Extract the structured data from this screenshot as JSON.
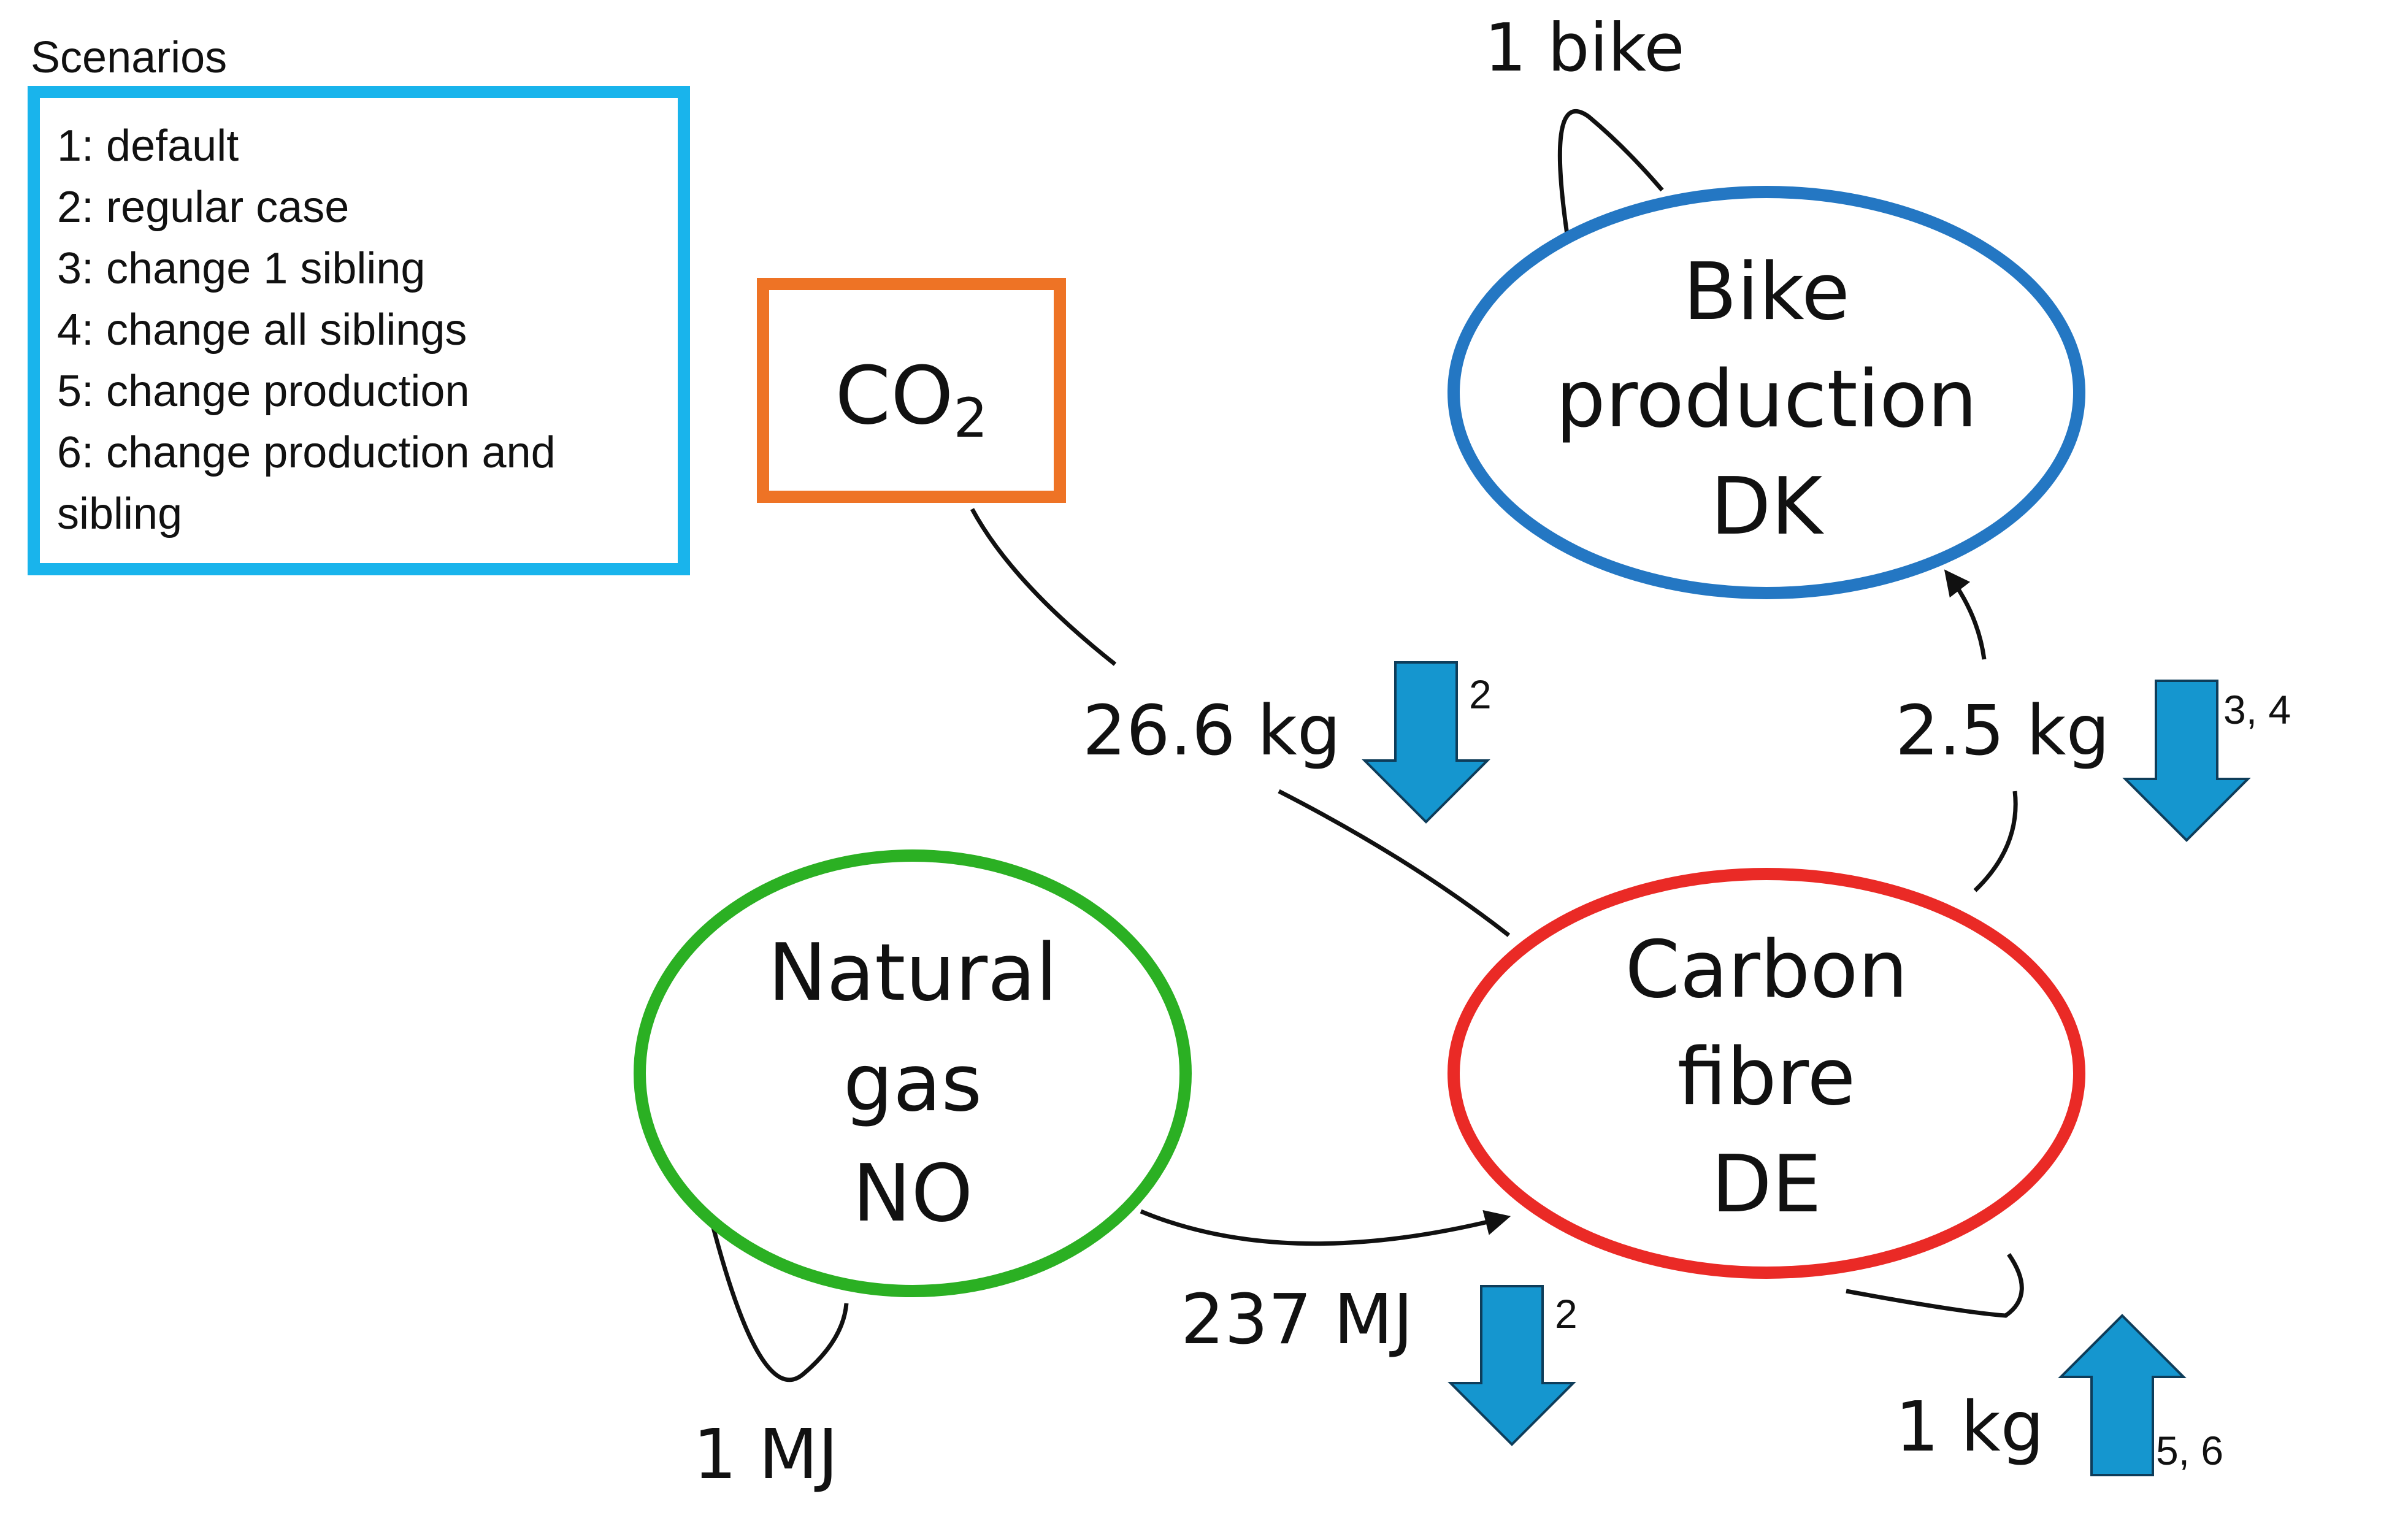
{
  "legend": {
    "title": "Scenarios",
    "items": [
      "1: default",
      "2: regular case",
      "3: change 1 sibling",
      "4: change all siblings",
      "5: change production",
      "6: change production and",
      "sibling"
    ],
    "border_color": "#19b4ec"
  },
  "nodes": {
    "co2": {
      "label": "CO",
      "subscript": "2",
      "color": "#ee7325"
    },
    "bike": {
      "lines": [
        "Bike",
        "production",
        "DK"
      ],
      "color": "#2477c3"
    },
    "carbon": {
      "lines": [
        "Carbon",
        "fibre",
        "DE"
      ],
      "color": "#ea2a26"
    },
    "gas": {
      "lines": [
        "Natural",
        "gas",
        "NO"
      ],
      "color": "#2bb023"
    }
  },
  "edges": {
    "bike_self": "1 bike",
    "co2_to_carbon": "26.6 kg",
    "carbon_to_bike": "2.5 kg",
    "gas_to_carbon": "237 MJ",
    "gas_self": "1 MJ",
    "carbon_self": "1 kg"
  },
  "arrows": {
    "color": "#1596cf",
    "co2_edge": {
      "direction": "down",
      "tag": "2"
    },
    "bike_edge": {
      "direction": "down",
      "tag": "3, 4"
    },
    "gas_edge": {
      "direction": "down",
      "tag": "2"
    },
    "carbon_self": {
      "direction": "up",
      "tag": "5, 6"
    }
  }
}
